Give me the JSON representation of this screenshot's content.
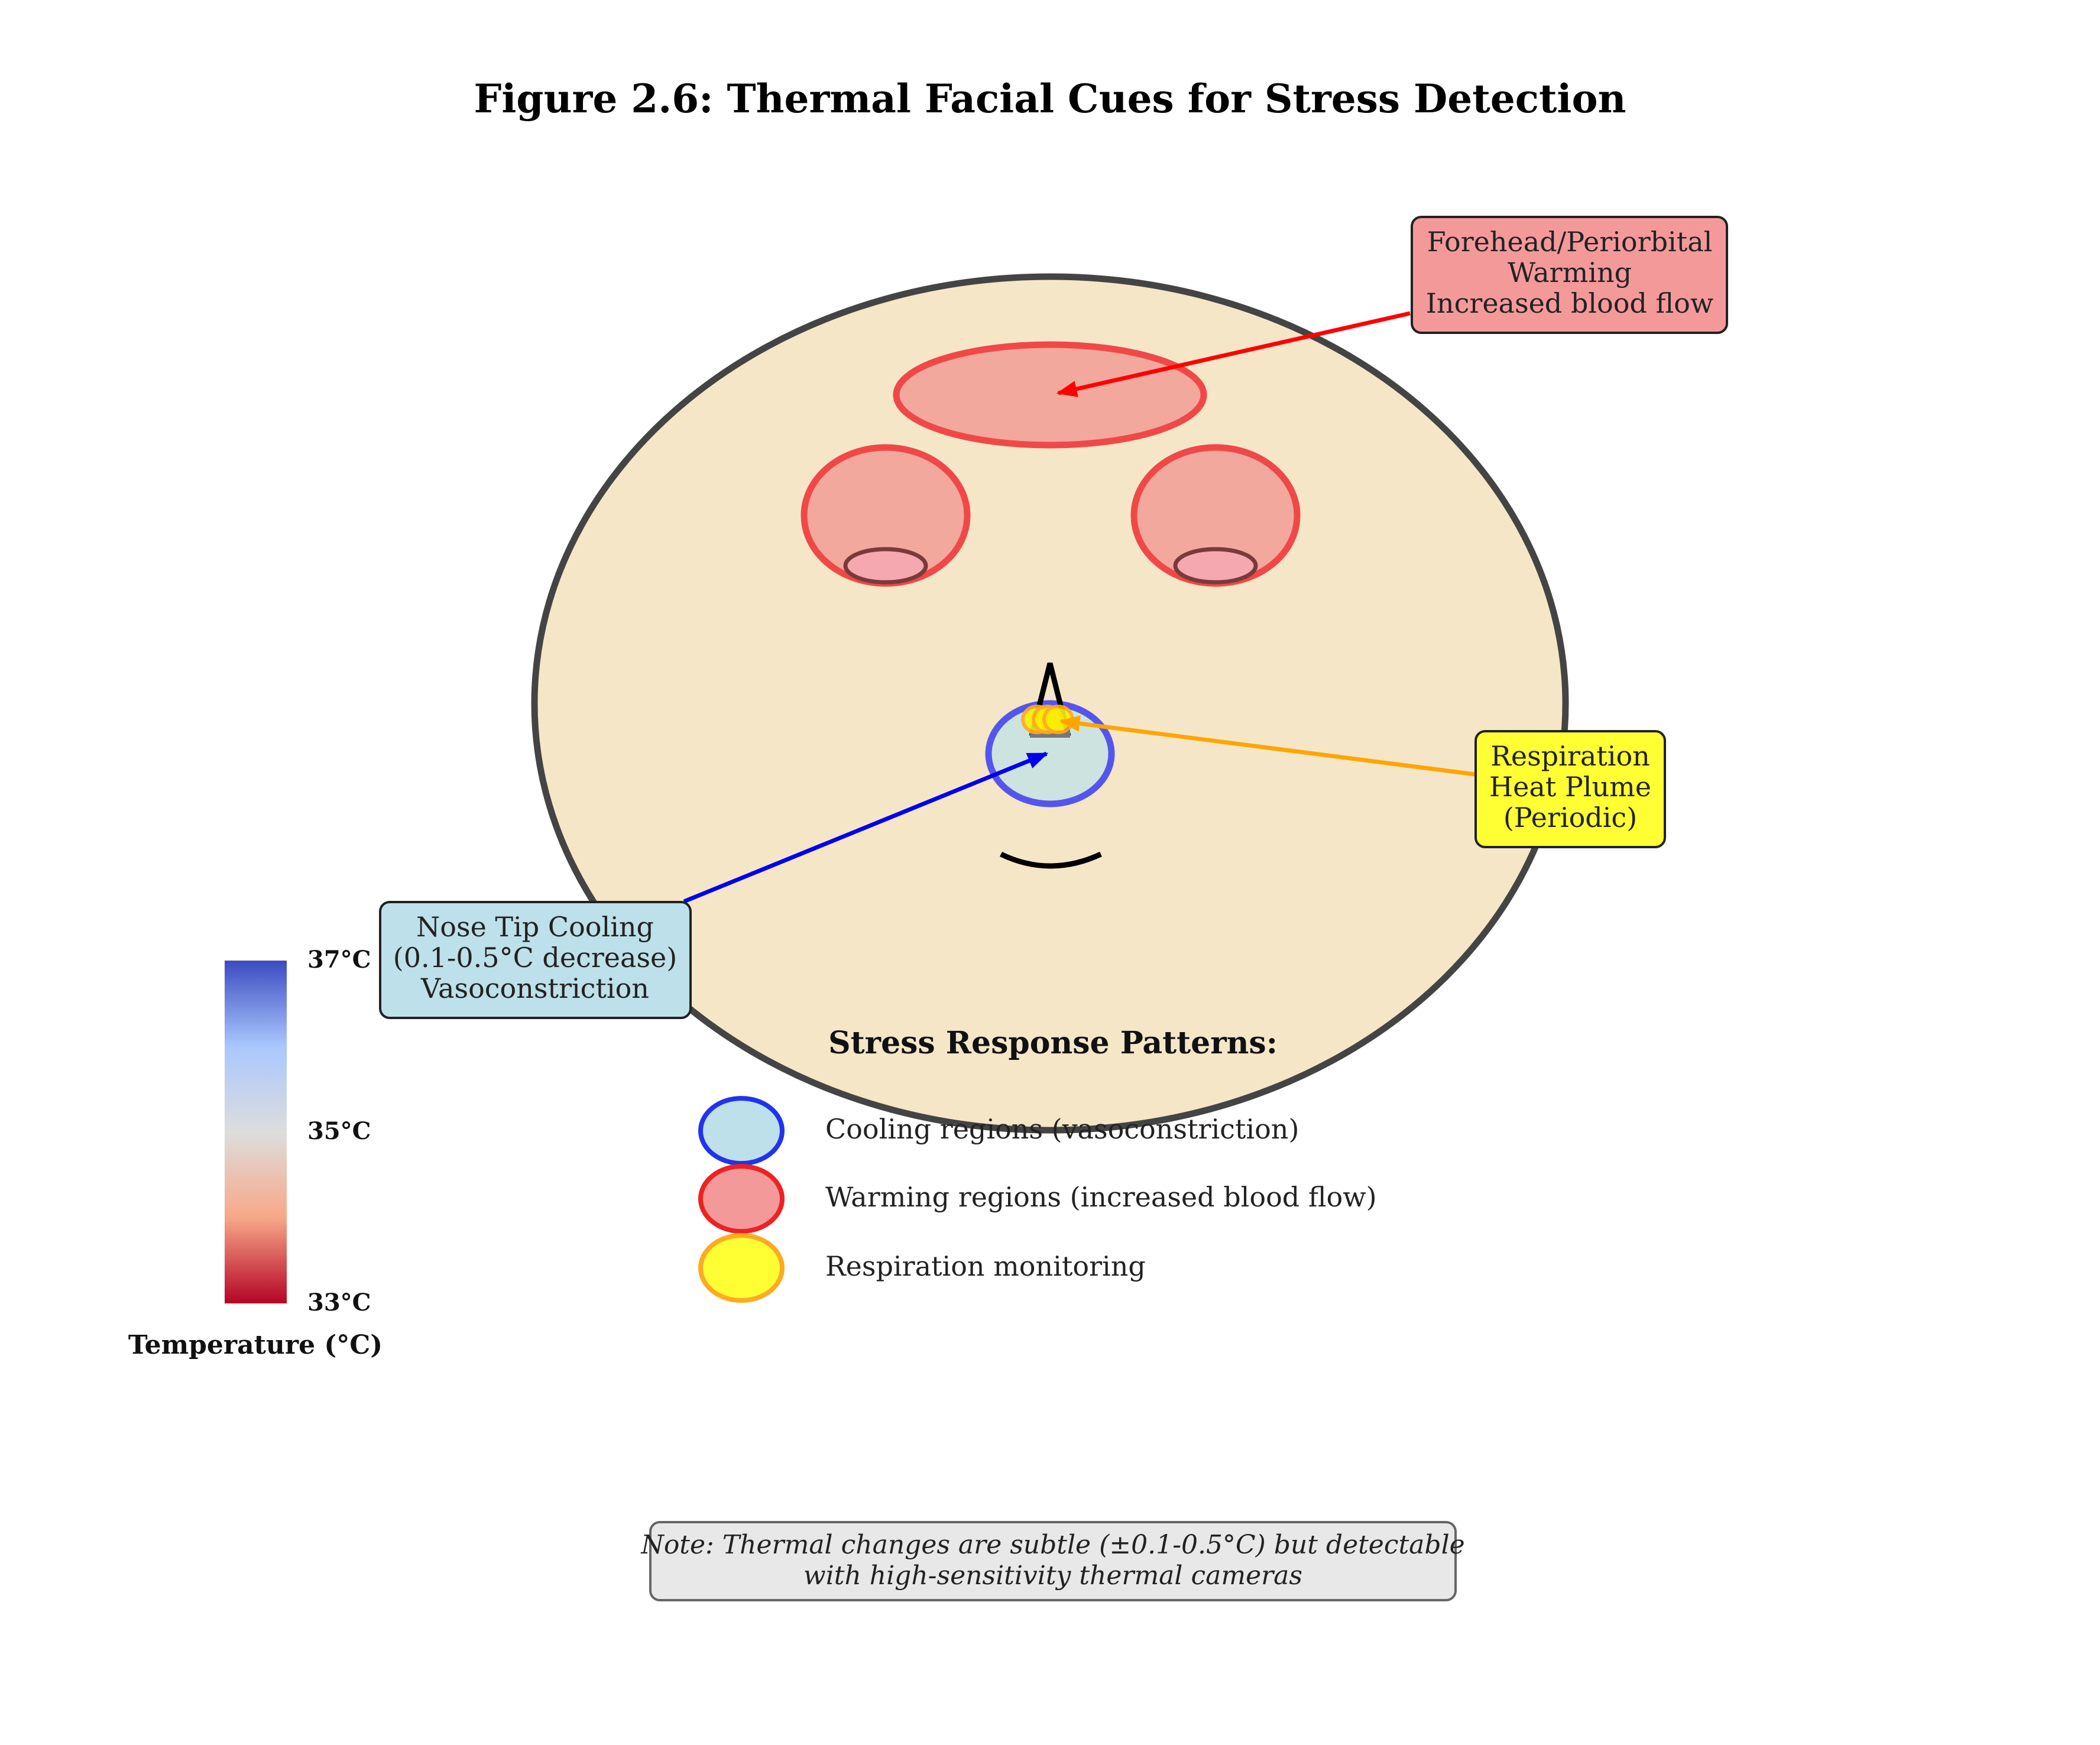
{
  "title": "Figure 2.6: Thermal Facial Cues for Stress Detection",
  "annotations": {
    "forehead": {
      "lines": [
        "Forehead/Periorbital",
        "Warming",
        "Increased blood flow"
      ],
      "fill": "#f4999a",
      "arrow": "#ff0000"
    },
    "respiration": {
      "lines": [
        "Respiration",
        "Heat Plume",
        "(Periodic)"
      ],
      "fill": "#ffff33",
      "arrow": "#ffa500"
    },
    "nose": {
      "lines": [
        "Nose Tip Cooling",
        "(0.1-0.5°C decrease)",
        "Vasoconstriction"
      ],
      "fill": "#bde0ea",
      "arrow": "#0000ee"
    }
  },
  "colorbar": {
    "labels": {
      "top": "37°C",
      "mid": "35°C",
      "bottom": "33°C"
    },
    "title": "Temperature (°C)",
    "stops": [
      "#b40426",
      "#f7a889",
      "#dddddd",
      "#aac7fd",
      "#3b4cc0"
    ]
  },
  "legend": {
    "title": "Stress Response Patterns:",
    "items": [
      {
        "label": "Cooling regions (vasoconstriction)",
        "fill": "#bde0ea",
        "stroke": "#2233ee"
      },
      {
        "label": "Warming regions (increased blood flow)",
        "fill": "#f4999a",
        "stroke": "#ee2222"
      },
      {
        "label": "Respiration monitoring",
        "fill": "#ffff33",
        "stroke": "#ffaa22"
      }
    ]
  },
  "note": {
    "lines": [
      "Note: Thermal changes are subtle (±0.1-0.5°C) but detectable",
      "with high-sensitivity thermal cameras"
    ]
  },
  "colors": {
    "face_fill": "#f5e6c8",
    "face_stroke": "#444444",
    "warm_fill": "#f2a89c",
    "warm_stroke": "#f04848",
    "cool_fill": "#cde3df",
    "cool_stroke": "#5555ee",
    "note_fill": "#e8e8e8"
  }
}
